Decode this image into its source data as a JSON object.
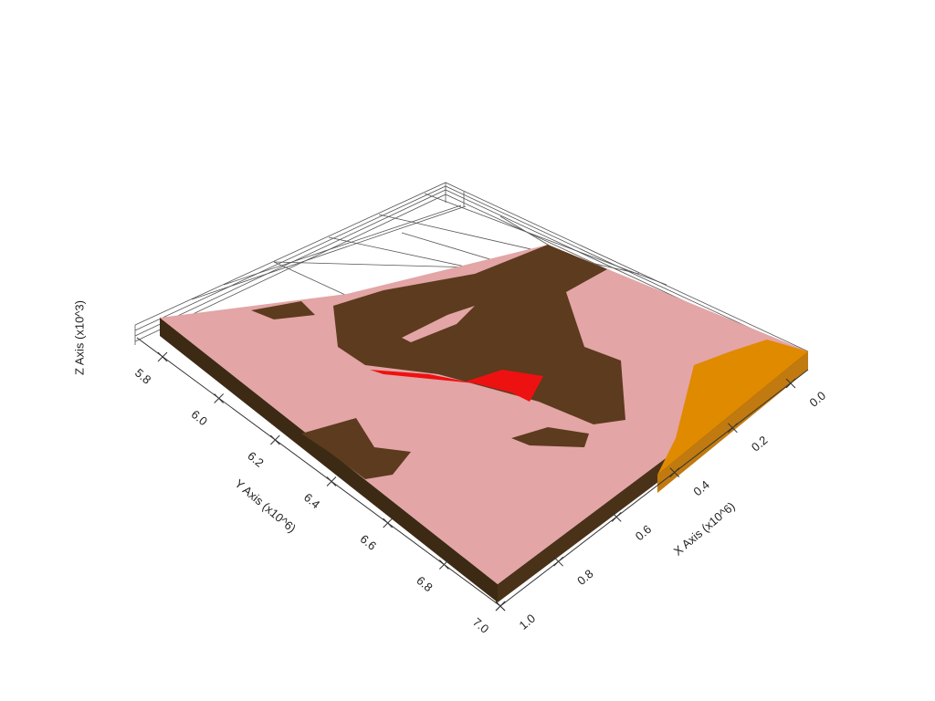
{
  "chart_data": {
    "type": "surface3d",
    "xlabel": "X Axis (x10^6)",
    "ylabel": "Y Axis (x10^6)",
    "zlabel": "Z Axis (x10^3)",
    "xlim": [
      0.0,
      1.0
    ],
    "ylim": [
      5.8,
      7.0
    ],
    "xticks": [
      {
        "value": 0.0,
        "label": "0.0"
      },
      0.2,
      0.4,
      0.6,
      0.8,
      {
        "value": 1.0,
        "label": "1.0"
      }
    ],
    "yticks": [
      5.8,
      {
        "value": 6.0,
        "label": "6.0"
      },
      6.2,
      6.4,
      6.6,
      6.8,
      {
        "value": 7.0,
        "label": "7.0"
      }
    ]
  }
}
